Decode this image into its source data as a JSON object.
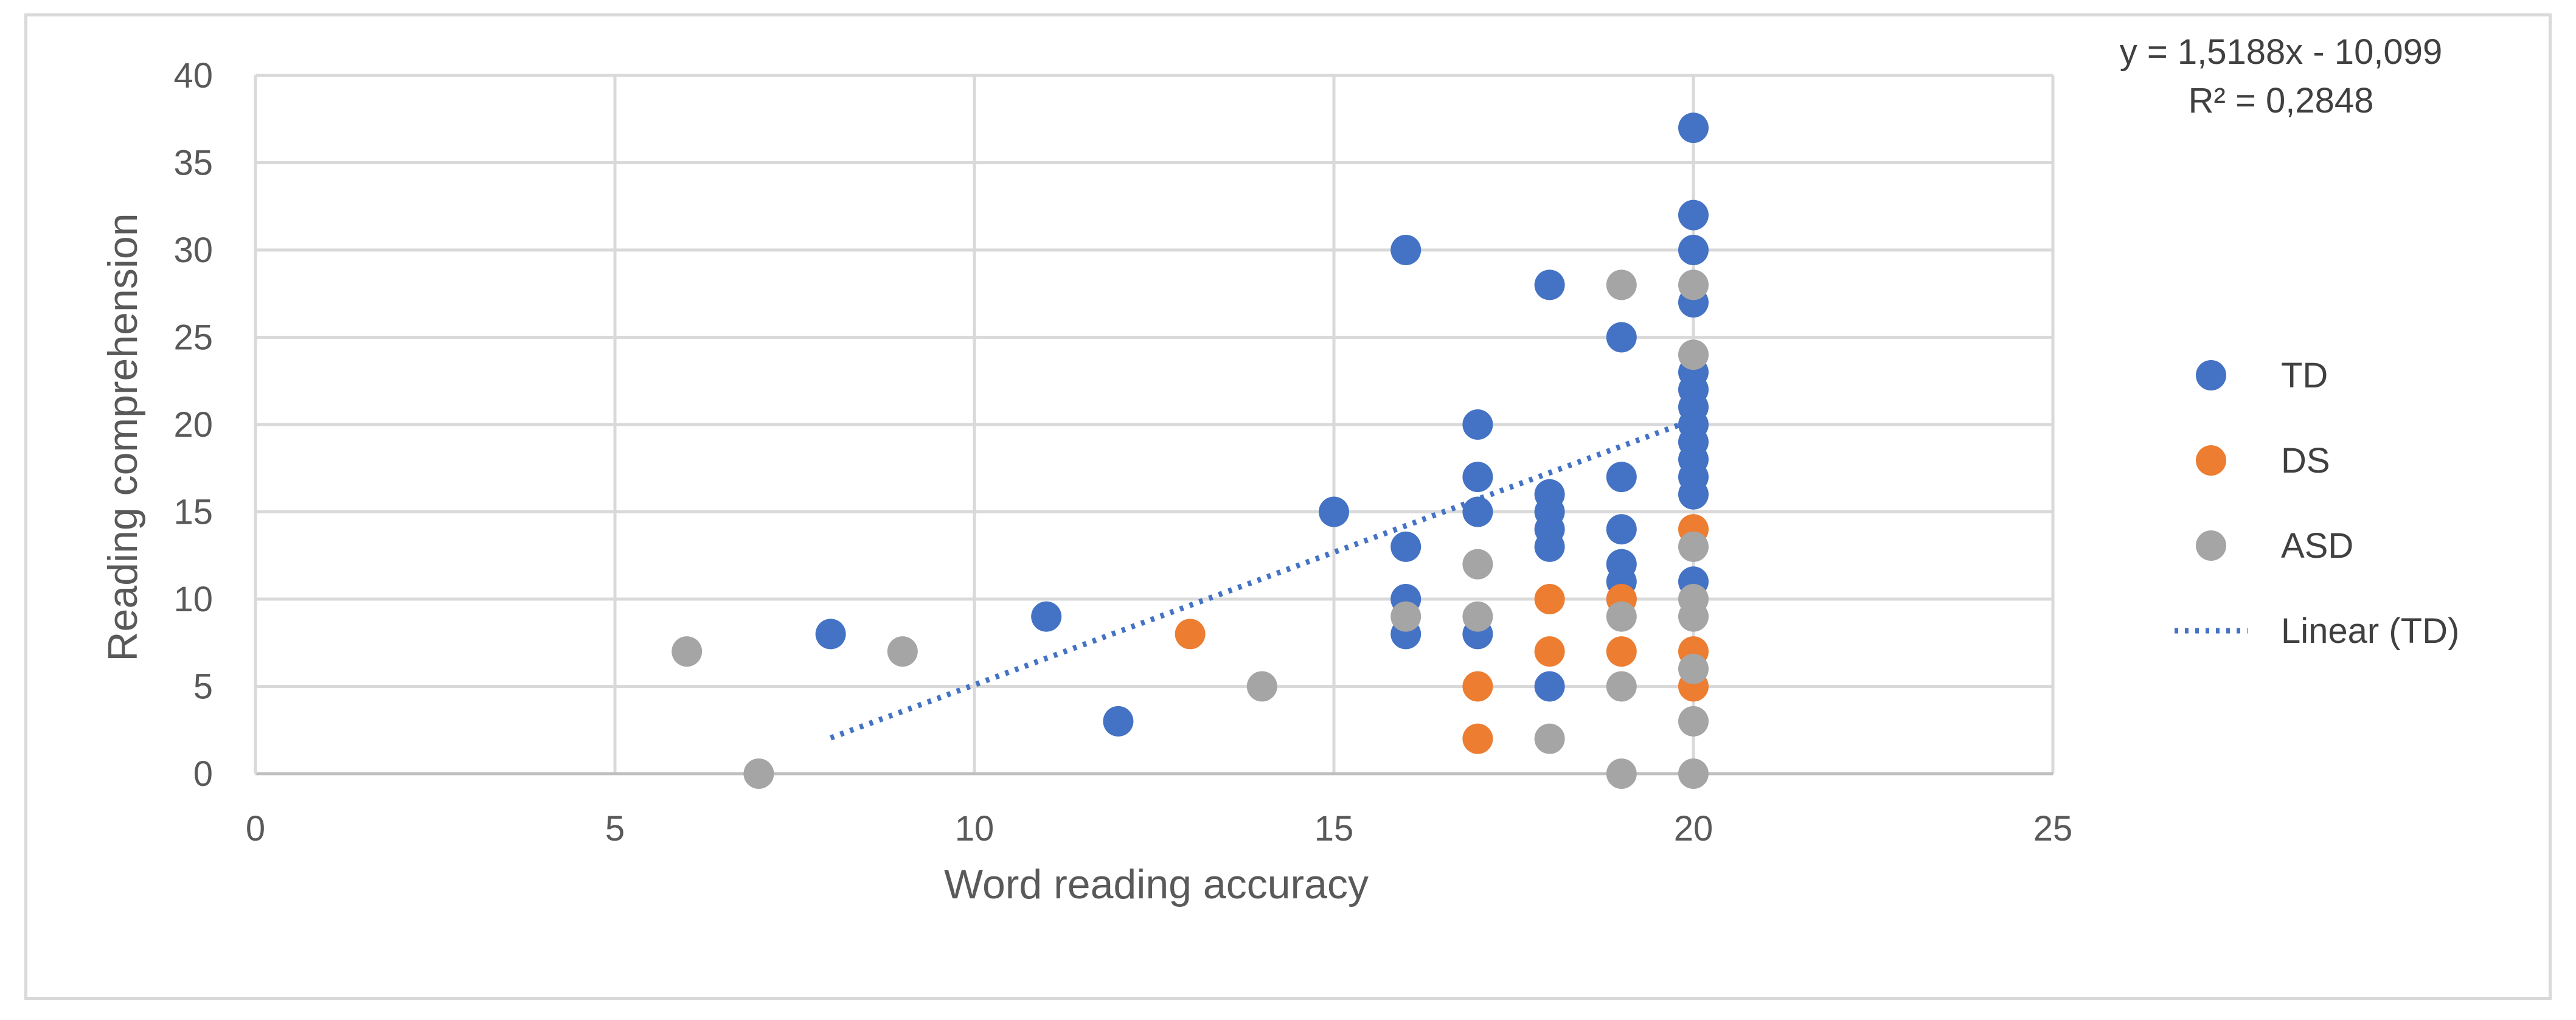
{
  "chart_data": {
    "type": "scatter",
    "title": "",
    "xlabel": "Word reading accuracy",
    "ylabel": "Reading comprehension",
    "xlim": [
      0,
      25
    ],
    "ylim": [
      0,
      40
    ],
    "xticks": [
      "0",
      "5",
      "10",
      "15",
      "20",
      "25"
    ],
    "yticks": [
      "0",
      "5",
      "10",
      "15",
      "20",
      "25",
      "30",
      "35",
      "40"
    ],
    "grid": true,
    "legend_position": "right",
    "series": [
      {
        "name": "TD",
        "color": "#4472c4",
        "points": [
          [
            8,
            8
          ],
          [
            11,
            9
          ],
          [
            12,
            3
          ],
          [
            15,
            15
          ],
          [
            16,
            30
          ],
          [
            16,
            13
          ],
          [
            16,
            10
          ],
          [
            16,
            8
          ],
          [
            17,
            20
          ],
          [
            17,
            17
          ],
          [
            17,
            15
          ],
          [
            17,
            8
          ],
          [
            18,
            28
          ],
          [
            18,
            16
          ],
          [
            18,
            15
          ],
          [
            18,
            14
          ],
          [
            18,
            13
          ],
          [
            18,
            5
          ],
          [
            19,
            25
          ],
          [
            19,
            17
          ],
          [
            19,
            14
          ],
          [
            19,
            12
          ],
          [
            19,
            11
          ],
          [
            19,
            10
          ],
          [
            20,
            37
          ],
          [
            20,
            32
          ],
          [
            20,
            30
          ],
          [
            20,
            27
          ],
          [
            20,
            23
          ],
          [
            20,
            22
          ],
          [
            20,
            21
          ],
          [
            20,
            20
          ],
          [
            20,
            19
          ],
          [
            20,
            18
          ],
          [
            20,
            17
          ],
          [
            20,
            16
          ],
          [
            20,
            11
          ]
        ]
      },
      {
        "name": "DS",
        "color": "#ed7d31",
        "points": [
          [
            13,
            8
          ],
          [
            17,
            5
          ],
          [
            17,
            2
          ],
          [
            18,
            10
          ],
          [
            18,
            7
          ],
          [
            19,
            10
          ],
          [
            19,
            7
          ],
          [
            20,
            14
          ],
          [
            20,
            7
          ],
          [
            20,
            5
          ]
        ]
      },
      {
        "name": "ASD",
        "color": "#a5a5a5",
        "points": [
          [
            6,
            7
          ],
          [
            7,
            0
          ],
          [
            9,
            7
          ],
          [
            14,
            5
          ],
          [
            16,
            9
          ],
          [
            17,
            12
          ],
          [
            17,
            9
          ],
          [
            18,
            2
          ],
          [
            19,
            28
          ],
          [
            19,
            9
          ],
          [
            19,
            5
          ],
          [
            19,
            0
          ],
          [
            20,
            28
          ],
          [
            20,
            24
          ],
          [
            20,
            13
          ],
          [
            20,
            10
          ],
          [
            20,
            9
          ],
          [
            20,
            6
          ],
          [
            20,
            3
          ],
          [
            20,
            0
          ]
        ]
      }
    ],
    "trendline": {
      "name": "Linear (TD)",
      "color": "#4472c4",
      "style": "dotted",
      "slope": 1.5188,
      "intercept": -10.099,
      "x_range": [
        8,
        20
      ],
      "equation_label": "y = 1,5188x - 10,099",
      "r2_label": "R² = 0,2848"
    }
  }
}
